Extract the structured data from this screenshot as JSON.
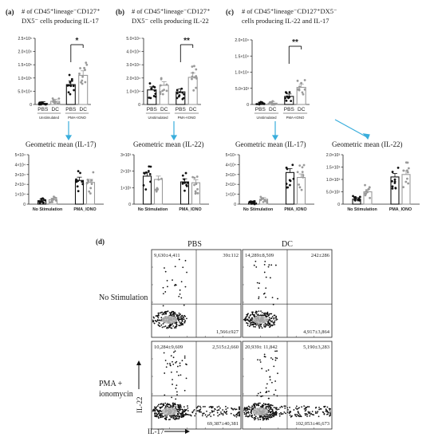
{
  "chart_data": [
    {
      "id": "a",
      "type": "bar",
      "panel_label": "(a)",
      "title_lines": [
        "# of CD45⁺lineage⁻CD127⁺",
        "DX5⁻ cells producing IL-17"
      ],
      "y_ticks": [
        "0",
        "5.0×10⁴",
        "1.0×10⁵",
        "1.5×10⁵",
        "2.0×10⁵",
        "2.5×10⁵"
      ],
      "ylim": [
        0,
        250000
      ],
      "groups": [
        "Unstimulated",
        "PMA+IONO"
      ],
      "categories": [
        "PBS",
        "DC",
        "PBS",
        "DC"
      ],
      "values": [
        4000,
        12000,
        75000,
        110000
      ],
      "significance": "*"
    },
    {
      "id": "b",
      "type": "bar",
      "panel_label": "(b)",
      "title_lines": [
        "# of CD45⁺lineage⁻CD127⁺",
        "DX5⁻ cells producing IL-22"
      ],
      "y_ticks": [
        "0",
        "1.0×10⁴",
        "2.0×10⁴",
        "3.0×10⁴",
        "4.0×10⁴",
        "5.0×10⁴"
      ],
      "ylim": [
        0,
        50000
      ],
      "groups": [
        "Unstimulated",
        "PMA+IONO"
      ],
      "categories": [
        "PBS",
        "DC",
        "PBS",
        "DC"
      ],
      "values": [
        11000,
        14500,
        9500,
        20500
      ],
      "significance": "**"
    },
    {
      "id": "c",
      "type": "bar",
      "panel_label": "(c)",
      "title_lines": [
        "# of CD45⁺lineage⁻CD127⁺DX5⁻",
        "cells producing IL-22 and IL-17"
      ],
      "y_ticks": [
        "0",
        "5.0×10³",
        "1.0×10⁴",
        "1.5×10⁴",
        "2.0×10⁴"
      ],
      "ylim": [
        0,
        20000
      ],
      "groups": [
        "Unstimulated",
        "PMA+IONO"
      ],
      "categories": [
        "PBS",
        "DC",
        "PBS",
        "DC"
      ],
      "values": [
        200,
        400,
        2500,
        5300
      ],
      "significance": "**"
    },
    {
      "id": "gm1",
      "type": "bar",
      "title": "Geometric mean (IL-17)",
      "y_ticks": [
        "0",
        "1×10⁴",
        "2×10⁴",
        "3×10⁴",
        "4×10⁴",
        "5×10⁴"
      ],
      "ylim": [
        0,
        50000
      ],
      "groups": [
        "No Stimulation",
        "PMA_IONO"
      ],
      "values": [
        3500,
        4500,
        24000,
        22000
      ]
    },
    {
      "id": "gm2",
      "type": "bar",
      "title": "Geometric mean (IL-22)",
      "y_ticks": [
        "0",
        "1×10³",
        "2×10³",
        "3×10³"
      ],
      "ylim": [
        0,
        3000
      ],
      "groups": [
        "No Stimulation",
        "PMA_IONO"
      ],
      "values": [
        1700,
        1500,
        1350,
        1300
      ]
    },
    {
      "id": "gm3",
      "type": "bar",
      "title": "Geometric mean (IL-17)",
      "y_ticks": [
        "0",
        "1×10⁴",
        "2×10⁴",
        "3×10⁴",
        "4×10⁴",
        "5×10⁴"
      ],
      "ylim": [
        0,
        50000
      ],
      "groups": [
        "No Stimulation",
        "PMA_IONO"
      ],
      "values": [
        1200,
        5000,
        32000,
        27000
      ]
    },
    {
      "id": "gm4",
      "type": "bar",
      "title": "Geometric mean (IL-22)",
      "y_ticks": [
        "0",
        "5.0×10²",
        "1.0×10³",
        "1.5×10³",
        "2.0×10³"
      ],
      "ylim": [
        0,
        2000
      ],
      "groups": [
        "No Stimulation",
        "PMA_IONO"
      ],
      "values": [
        200,
        500,
        1100,
        1200
      ]
    }
  ],
  "flow": {
    "panel_label": "(d)",
    "col_labels": [
      "PBS",
      "DC"
    ],
    "row_labels": [
      "No Stimulation",
      "PMA + ionomycin"
    ],
    "y_axis": "IL-22",
    "x_axis": "IL-17",
    "quadrants": [
      {
        "ul": "9,630±4,411",
        "ur": "39±112",
        "lr": "1,566±927"
      },
      {
        "ul": "14,289±8,509",
        "ur": "242±286",
        "lr": "4,917±3,864"
      },
      {
        "ul": "10,284±9,609",
        "ur": "2,515±2,660",
        "lr": "69,387±40,381"
      },
      {
        "ul": "20,939± 11,842",
        "ur": "5,190±3,283",
        "lr": "102,053±46,673"
      }
    ]
  },
  "colors": {
    "pbs": "#111111",
    "dc": "#9a9a9a",
    "arrow": "#3aaedc"
  }
}
